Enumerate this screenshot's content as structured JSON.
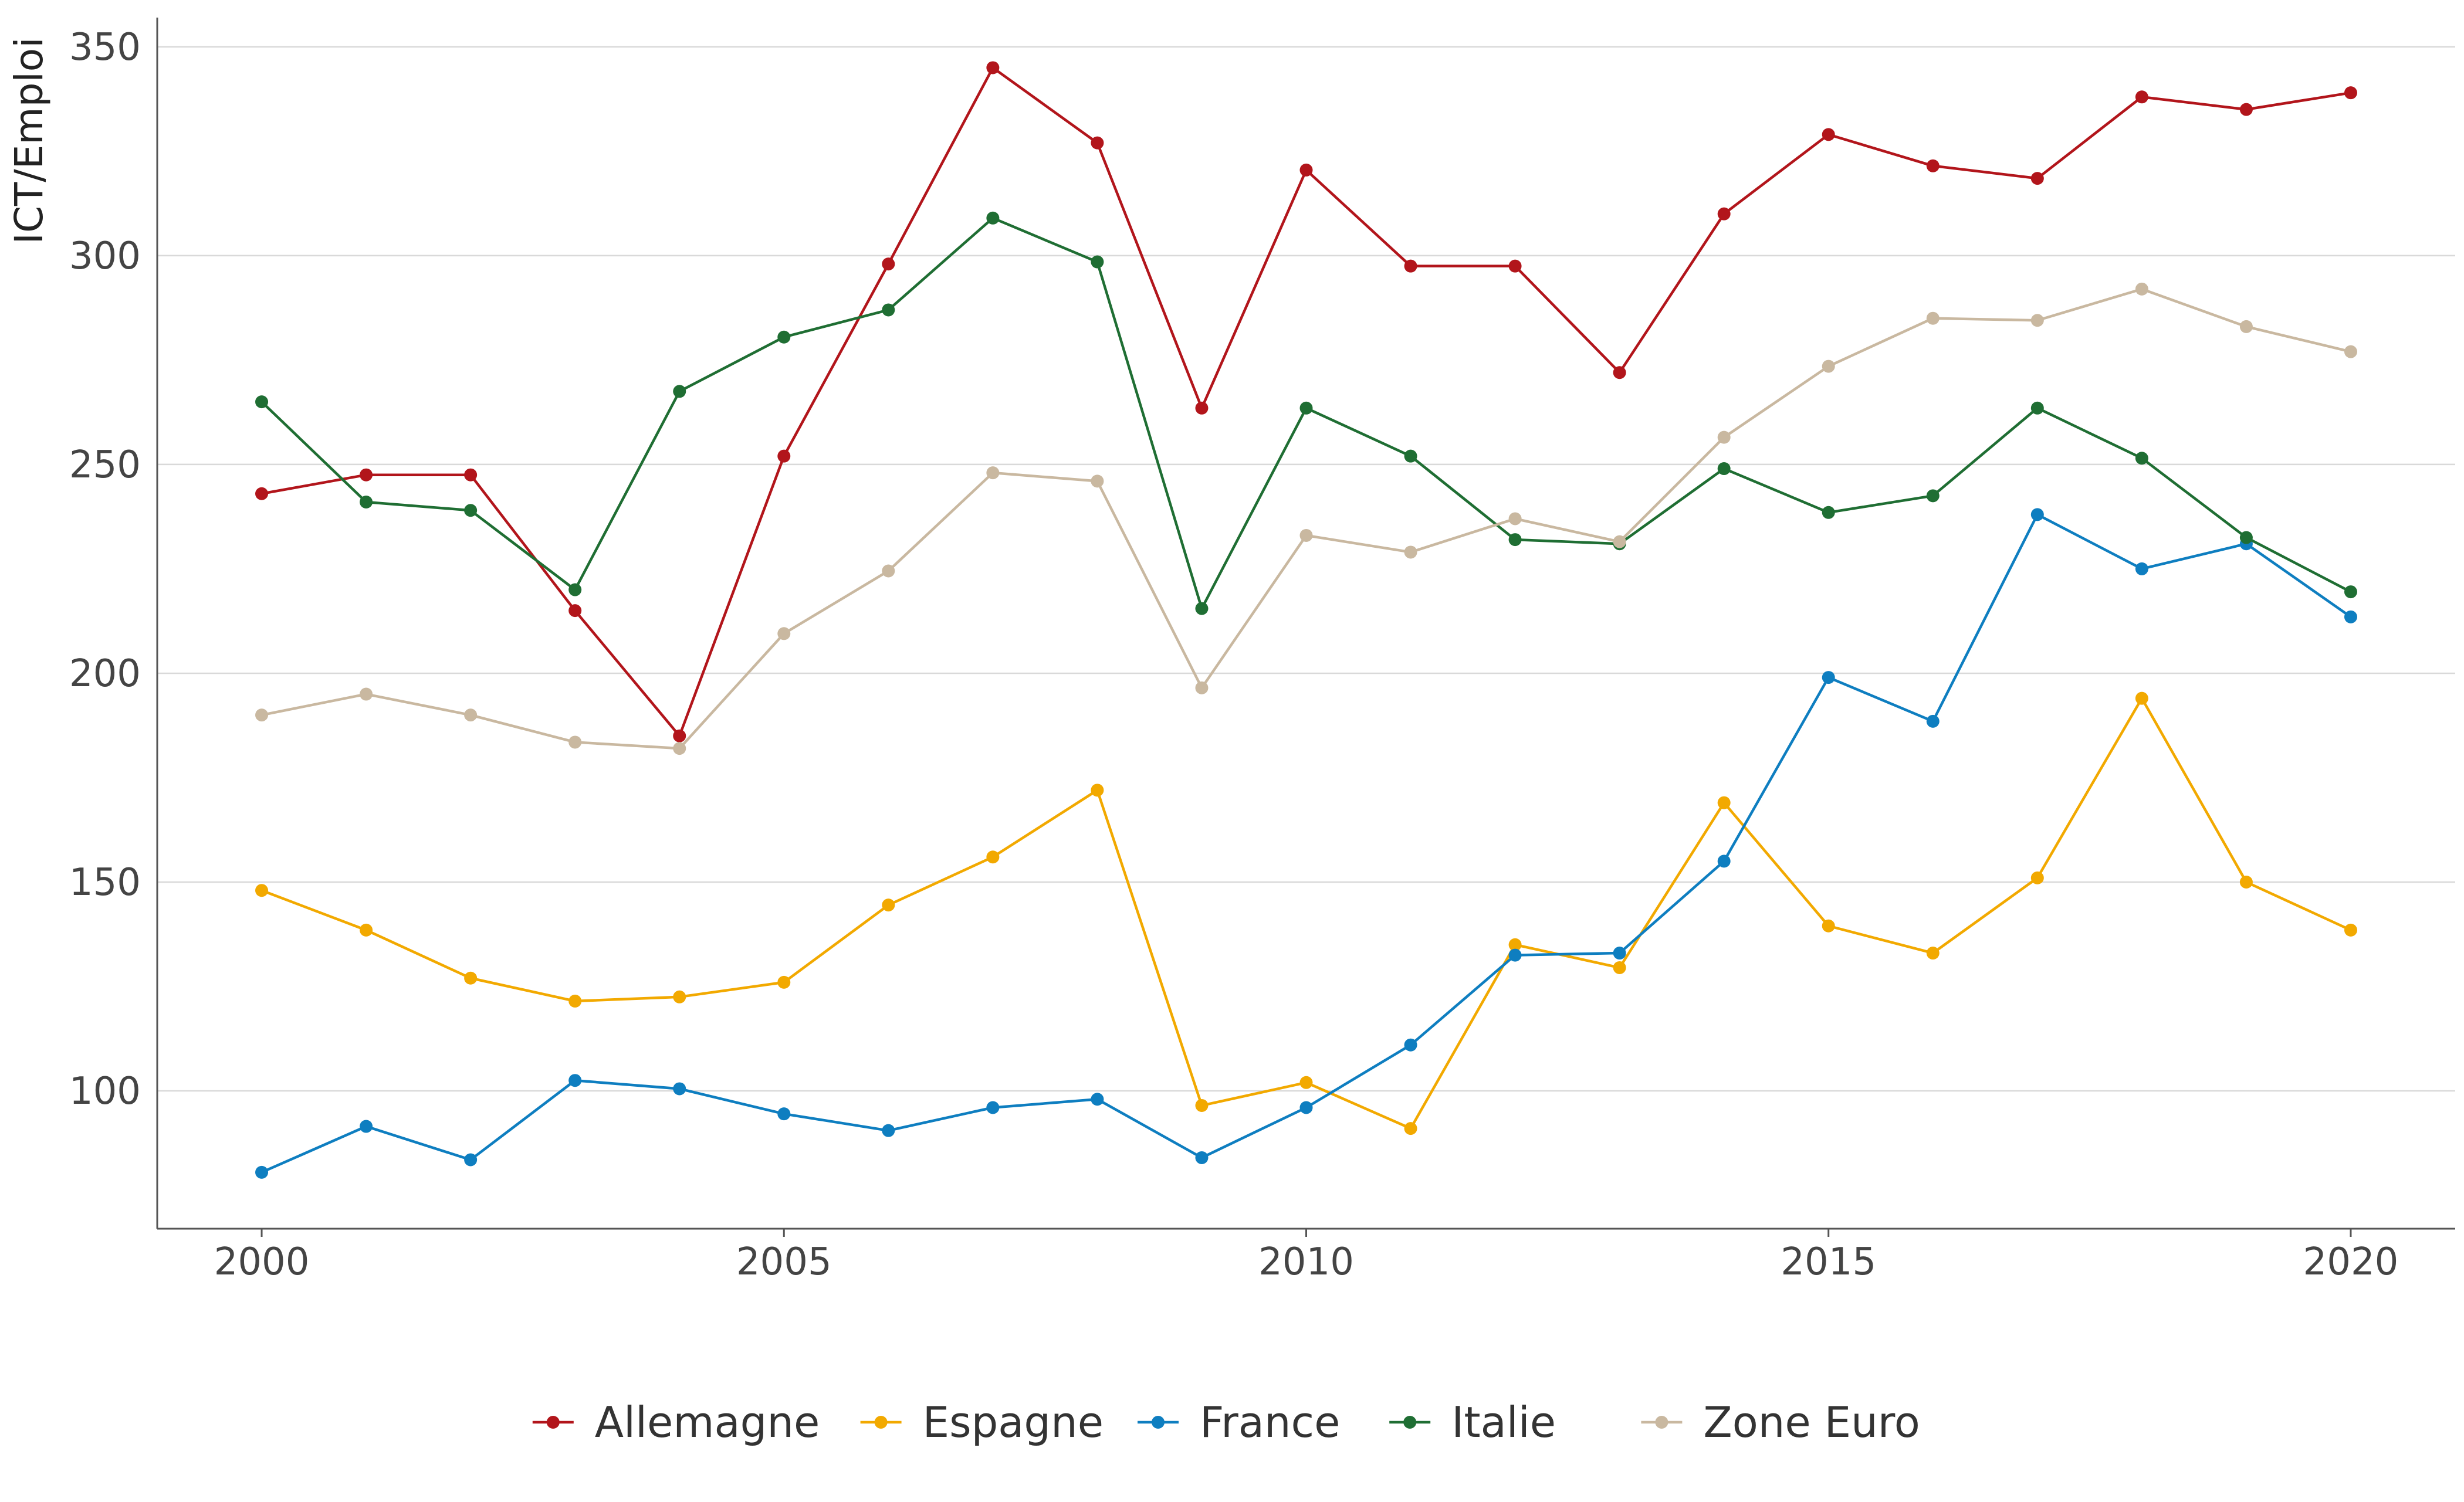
{
  "chart_data": {
    "type": "line",
    "title": "",
    "xlabel": "",
    "ylabel": "ICT/Emploi",
    "xlim": [
      1999,
      2021
    ],
    "ylim": [
      67,
      357
    ],
    "x_ticks": [
      2000,
      2005,
      2010,
      2015,
      2020
    ],
    "y_ticks": [
      100,
      150,
      200,
      250,
      300,
      350
    ],
    "grid": "horizontal",
    "legend_position": "bottom",
    "x": [
      2000,
      2001,
      2002,
      2003,
      2004,
      2005,
      2006,
      2007,
      2008,
      2009,
      2010,
      2011,
      2012,
      2013,
      2014,
      2015,
      2016,
      2017,
      2018,
      2019,
      2020
    ],
    "series": [
      {
        "name": "Allemagne",
        "color": "#b2151b",
        "values": [
          243,
          247.5,
          247.5,
          215,
          185,
          252,
          298,
          345,
          327,
          263.5,
          320.5,
          297.5,
          297.5,
          272,
          310,
          329,
          321.5,
          318.5,
          338,
          335,
          339
        ]
      },
      {
        "name": "Espagne",
        "color": "#f2a900",
        "values": [
          148,
          138.5,
          127,
          121.5,
          122.5,
          126,
          144.5,
          156,
          172,
          96.5,
          102,
          91,
          135,
          129.5,
          169,
          139.5,
          133,
          151,
          194,
          150,
          138.5
        ]
      },
      {
        "name": "France",
        "color": "#0e7ec0",
        "values": [
          80.5,
          91.5,
          83.5,
          102.5,
          100.5,
          94.5,
          90.5,
          96,
          98,
          84,
          96,
          111,
          132.5,
          133,
          155,
          199,
          188.5,
          238,
          225,
          231,
          213.5
        ]
      },
      {
        "name": "Italie",
        "color": "#1f6e33",
        "values": [
          265,
          241,
          239,
          220,
          267.5,
          280.5,
          287,
          309,
          298.5,
          215.5,
          263.5,
          252,
          232,
          231,
          249,
          238.5,
          242.5,
          263.5,
          251.5,
          232.5,
          219.5
        ]
      },
      {
        "name": "Zone Euro",
        "color": "#c9b8a0",
        "values": [
          190,
          195,
          190,
          183.5,
          182,
          209.5,
          224.5,
          248,
          246,
          196.5,
          233,
          229,
          237,
          231.5,
          256.5,
          273.5,
          285,
          284.5,
          292,
          283,
          277
        ]
      }
    ]
  }
}
